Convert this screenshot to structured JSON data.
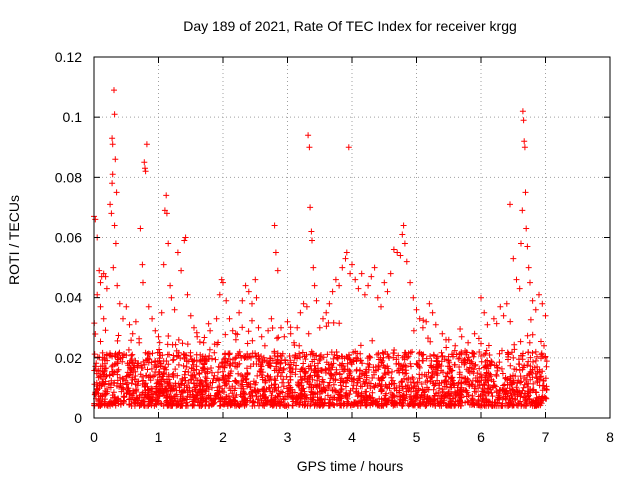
{
  "chart_data": {
    "type": "scatter",
    "title": "Day 189 of 2021, Rate Of TEC Index for receiver krgg",
    "xlabel": "GPS time / hours",
    "ylabel": "ROTI / TECUs",
    "xlim": [
      0,
      8
    ],
    "ylim": [
      0,
      0.12
    ],
    "x_ticks": [
      0,
      1,
      2,
      3,
      4,
      5,
      6,
      7,
      8
    ],
    "x_tick_labels": [
      "0",
      "1",
      "2",
      "3",
      "4",
      "5",
      "6",
      "7",
      "8"
    ],
    "y_ticks": [
      0,
      0.02,
      0.04,
      0.06,
      0.08,
      0.1,
      0.12
    ],
    "y_tick_labels": [
      "0",
      "0.02",
      "0.04",
      "0.06",
      "0.08",
      "0.1",
      "0.12"
    ],
    "grid": true,
    "marker": "+",
    "series_color": "#ff0000",
    "series": [
      {
        "name": "ROTI",
        "points": [
          [
            0.0,
            0.067
          ],
          [
            0.02,
            0.066
          ],
          [
            0.05,
            0.06
          ],
          [
            0.08,
            0.049
          ],
          [
            0.1,
            0.045
          ],
          [
            0.12,
            0.047
          ],
          [
            0.15,
            0.048
          ],
          [
            0.18,
            0.047
          ],
          [
            0.2,
            0.043
          ],
          [
            0.05,
            0.041
          ],
          [
            0.1,
            0.037
          ],
          [
            0.15,
            0.033
          ],
          [
            0.25,
            0.071
          ],
          [
            0.27,
            0.068
          ],
          [
            0.28,
            0.078
          ],
          [
            0.29,
            0.081
          ],
          [
            0.28,
            0.093
          ],
          [
            0.29,
            0.091
          ],
          [
            0.31,
            0.109
          ],
          [
            0.32,
            0.101
          ],
          [
            0.33,
            0.086
          ],
          [
            0.35,
            0.075
          ],
          [
            0.32,
            0.064
          ],
          [
            0.34,
            0.058
          ],
          [
            0.3,
            0.05
          ],
          [
            0.36,
            0.044
          ],
          [
            0.4,
            0.038
          ],
          [
            0.45,
            0.033
          ],
          [
            0.5,
            0.037
          ],
          [
            0.55,
            0.031
          ],
          [
            0.6,
            0.028
          ],
          [
            0.65,
            0.032
          ],
          [
            0.7,
            0.025
          ],
          [
            0.72,
            0.063
          ],
          [
            0.75,
            0.051
          ],
          [
            0.76,
            0.045
          ],
          [
            0.78,
            0.085
          ],
          [
            0.79,
            0.083
          ],
          [
            0.8,
            0.082
          ],
          [
            0.82,
            0.091
          ],
          [
            0.85,
            0.037
          ],
          [
            0.9,
            0.033
          ],
          [
            0.95,
            0.029
          ],
          [
            1.0,
            0.027
          ],
          [
            1.05,
            0.035
          ],
          [
            1.08,
            0.051
          ],
          [
            1.1,
            0.069
          ],
          [
            1.12,
            0.074
          ],
          [
            1.13,
            0.068
          ],
          [
            1.15,
            0.058
          ],
          [
            1.18,
            0.044
          ],
          [
            1.2,
            0.04
          ],
          [
            1.25,
            0.036
          ],
          [
            1.3,
            0.055
          ],
          [
            1.35,
            0.049
          ],
          [
            1.4,
            0.059
          ],
          [
            1.42,
            0.06
          ],
          [
            1.45,
            0.041
          ],
          [
            1.5,
            0.034
          ],
          [
            1.55,
            0.03
          ],
          [
            1.6,
            0.027
          ],
          [
            1.7,
            0.025
          ],
          [
            1.8,
            0.029
          ],
          [
            1.9,
            0.033
          ],
          [
            1.95,
            0.041
          ],
          [
            1.98,
            0.046
          ],
          [
            2.0,
            0.045
          ],
          [
            2.05,
            0.039
          ],
          [
            2.1,
            0.033
          ],
          [
            2.15,
            0.029
          ],
          [
            2.2,
            0.026
          ],
          [
            2.25,
            0.035
          ],
          [
            2.3,
            0.039
          ],
          [
            2.35,
            0.044
          ],
          [
            2.4,
            0.042
          ],
          [
            2.45,
            0.038
          ],
          [
            2.5,
            0.046
          ],
          [
            2.52,
            0.04
          ],
          [
            2.55,
            0.03
          ],
          [
            2.6,
            0.027
          ],
          [
            2.65,
            0.024
          ],
          [
            2.7,
            0.029
          ],
          [
            2.75,
            0.033
          ],
          [
            2.8,
            0.064
          ],
          [
            2.82,
            0.055
          ],
          [
            2.85,
            0.049
          ],
          [
            2.9,
            0.03
          ],
          [
            2.95,
            0.027
          ],
          [
            3.0,
            0.032
          ],
          [
            3.05,
            0.028
          ],
          [
            3.1,
            0.025
          ],
          [
            3.15,
            0.03
          ],
          [
            3.2,
            0.035
          ],
          [
            3.25,
            0.038
          ],
          [
            3.3,
            0.037
          ],
          [
            3.32,
            0.094
          ],
          [
            3.34,
            0.09
          ],
          [
            3.35,
            0.07
          ],
          [
            3.37,
            0.062
          ],
          [
            3.38,
            0.059
          ],
          [
            3.4,
            0.05
          ],
          [
            3.42,
            0.044
          ],
          [
            3.45,
            0.039
          ],
          [
            3.5,
            0.03
          ],
          [
            3.55,
            0.033
          ],
          [
            3.6,
            0.035
          ],
          [
            3.65,
            0.038
          ],
          [
            3.7,
            0.042
          ],
          [
            3.75,
            0.046
          ],
          [
            3.8,
            0.044
          ],
          [
            3.85,
            0.05
          ],
          [
            3.9,
            0.053
          ],
          [
            3.92,
            0.055
          ],
          [
            3.95,
            0.09
          ],
          [
            3.97,
            0.048
          ],
          [
            4.0,
            0.051
          ],
          [
            4.05,
            0.046
          ],
          [
            4.1,
            0.043
          ],
          [
            4.15,
            0.048
          ],
          [
            4.2,
            0.041
          ],
          [
            4.25,
            0.044
          ],
          [
            4.3,
            0.047
          ],
          [
            4.35,
            0.05
          ],
          [
            4.4,
            0.04
          ],
          [
            4.45,
            0.037
          ],
          [
            4.5,
            0.045
          ],
          [
            4.55,
            0.042
          ],
          [
            4.6,
            0.048
          ],
          [
            4.65,
            0.056
          ],
          [
            4.7,
            0.055
          ],
          [
            4.75,
            0.054
          ],
          [
            4.78,
            0.061
          ],
          [
            4.8,
            0.064
          ],
          [
            4.82,
            0.058
          ],
          [
            4.85,
            0.052
          ],
          [
            4.9,
            0.045
          ],
          [
            4.95,
            0.04
          ],
          [
            5.0,
            0.036
          ],
          [
            5.05,
            0.033
          ],
          [
            5.1,
            0.03
          ],
          [
            5.15,
            0.032
          ],
          [
            5.2,
            0.038
          ],
          [
            5.25,
            0.035
          ],
          [
            5.3,
            0.031
          ],
          [
            5.4,
            0.028
          ],
          [
            5.5,
            0.026
          ],
          [
            5.6,
            0.024
          ],
          [
            5.7,
            0.027
          ],
          [
            5.8,
            0.025
          ],
          [
            5.9,
            0.028
          ],
          [
            6.0,
            0.04
          ],
          [
            6.05,
            0.035
          ],
          [
            6.1,
            0.031
          ],
          [
            6.2,
            0.033
          ],
          [
            6.3,
            0.037
          ],
          [
            6.35,
            0.034
          ],
          [
            6.4,
            0.038
          ],
          [
            6.45,
            0.071
          ],
          [
            6.5,
            0.053
          ],
          [
            6.55,
            0.046
          ],
          [
            6.6,
            0.043
          ],
          [
            6.62,
            0.058
          ],
          [
            6.64,
            0.069
          ],
          [
            6.65,
            0.102
          ],
          [
            6.66,
            0.099
          ],
          [
            6.67,
            0.092
          ],
          [
            6.68,
            0.09
          ],
          [
            6.69,
            0.075
          ],
          [
            6.7,
            0.063
          ],
          [
            6.72,
            0.057
          ],
          [
            6.74,
            0.05
          ],
          [
            6.76,
            0.045
          ],
          [
            6.8,
            0.039
          ],
          [
            6.85,
            0.036
          ],
          [
            6.9,
            0.041
          ],
          [
            6.95,
            0.038
          ],
          [
            7.0,
            0.034
          ]
        ]
      }
    ],
    "noise_band": {
      "x_range": [
        0.0,
        7.02
      ],
      "y_typical_range": [
        0.004,
        0.022
      ],
      "description": "dense cloud of ROTI samples between about 0.004 and 0.025 TECU across 0-7 h"
    }
  }
}
